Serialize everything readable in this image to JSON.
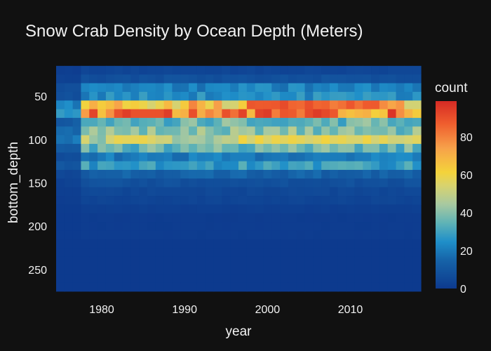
{
  "chart_data": {
    "type": "heatmap",
    "title": "Snow Crab Density by Ocean Depth (Meters)",
    "xlabel": "year",
    "ylabel": "bottom_depth",
    "colorbar_title": "count",
    "x_ticks": [
      1980,
      1990,
      2000,
      2010
    ],
    "y_ticks": [
      50,
      100,
      150,
      200,
      250
    ],
    "colorbar_ticks": [
      0,
      20,
      40,
      60,
      80
    ],
    "xlim": [
      1974.5,
      2018.5
    ],
    "ylim_reversed": [
      280,
      20
    ],
    "x_years": [
      1975,
      2018
    ],
    "y_bin_start": 20,
    "y_bin_size": 10,
    "y_bins": 26,
    "z_range": [
      0,
      99
    ],
    "colorscale": [
      [
        0.0,
        "#0d3a8e"
      ],
      [
        0.15,
        "#1663a8"
      ],
      [
        0.25,
        "#1f8fc9"
      ],
      [
        0.35,
        "#5fb3b6"
      ],
      [
        0.45,
        "#a8c9a0"
      ],
      [
        0.55,
        "#d8d36e"
      ],
      [
        0.62,
        "#f4d33b"
      ],
      [
        0.75,
        "#f7a14a"
      ],
      [
        0.88,
        "#ef5d2e"
      ],
      [
        1.0,
        "#d62a24"
      ]
    ],
    "depth_profile_counts": [
      {
        "depth": 20,
        "count": 4
      },
      {
        "depth": 30,
        "count": 8
      },
      {
        "depth": 40,
        "count": 22
      },
      {
        "depth": 50,
        "count": 24
      },
      {
        "depth": 60,
        "count": 66
      },
      {
        "depth": 70,
        "count": 80
      },
      {
        "depth": 80,
        "count": 36
      },
      {
        "depth": 90,
        "count": 40
      },
      {
        "depth": 100,
        "count": 50
      },
      {
        "depth": 110,
        "count": 36
      },
      {
        "depth": 120,
        "count": 20
      },
      {
        "depth": 130,
        "count": 28
      },
      {
        "depth": 140,
        "count": 14
      },
      {
        "depth": 150,
        "count": 8
      },
      {
        "depth": 160,
        "count": 5
      },
      {
        "depth": 170,
        "count": 4
      },
      {
        "depth": 180,
        "count": 2
      },
      {
        "depth": 190,
        "count": 1
      },
      {
        "depth": 200,
        "count": 1
      },
      {
        "depth": 210,
        "count": 1
      },
      {
        "depth": 220,
        "count": 0
      },
      {
        "depth": 230,
        "count": 0
      },
      {
        "depth": 240,
        "count": 0
      },
      {
        "depth": 250,
        "count": 0
      },
      {
        "depth": 260,
        "count": 0
      },
      {
        "depth": 270,
        "count": 0
      }
    ]
  }
}
